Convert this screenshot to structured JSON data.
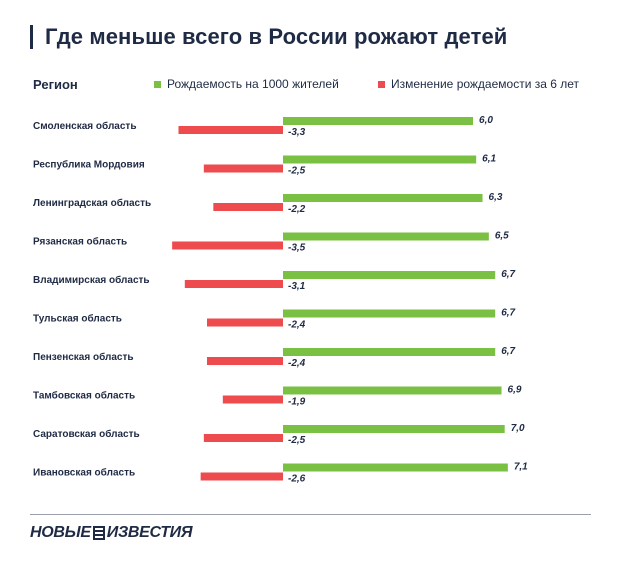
{
  "header": {
    "title": "Где меньше всего в России рожают детей"
  },
  "colors": {
    "positive": "#7ac143",
    "negative": "#ee4b4e",
    "text": "#1f2a44"
  },
  "chart_data": {
    "type": "bar",
    "orientation": "horizontal",
    "category_header": "Регион",
    "categories": [
      "Смоленская область",
      "Республика Мордовия",
      "Ленинградская область",
      "Рязанская область",
      "Владимирская область",
      "Тульская область",
      "Пензенская область",
      "Тамбовская область",
      "Саратовская область",
      "Ивановская область"
    ],
    "series": [
      {
        "name": "Рождаемость на 1000 жителей",
        "color": "#7ac143",
        "values": [
          6.0,
          6.1,
          6.3,
          6.5,
          6.7,
          6.7,
          6.7,
          6.9,
          7.0,
          7.1
        ],
        "labels": [
          "6,0",
          "6,1",
          "6,3",
          "6,5",
          "6,7",
          "6,7",
          "6,7",
          "6,9",
          "7,0",
          "7,1"
        ]
      },
      {
        "name": "Изменение рождаемости за 6 лет",
        "color": "#ee4b4e",
        "values": [
          -3.3,
          -2.5,
          -2.2,
          -3.5,
          -3.1,
          -2.4,
          -2.4,
          -1.9,
          -2.5,
          -2.6
        ],
        "labels": [
          "-3,3",
          "-2,5",
          "-2,2",
          "-3,5",
          "-3,1",
          "-2,4",
          "-2,4",
          "-1,9",
          "-2,5",
          "-2,6"
        ]
      }
    ],
    "grid": false,
    "legend": "top"
  },
  "footer": {
    "logo_left": "НОВЫЕ",
    "logo_right": "ИЗВЕСТИЯ"
  }
}
